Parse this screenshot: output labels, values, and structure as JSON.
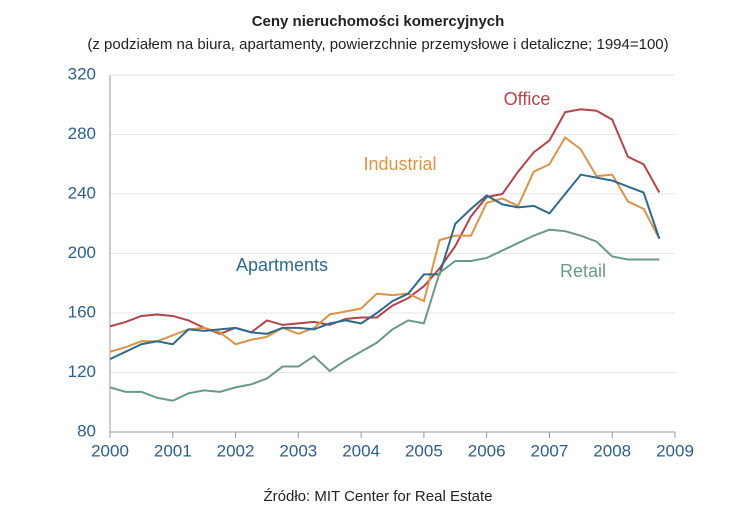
{
  "chart_data": {
    "type": "line",
    "title": "Ceny nieruchomości komercyjnych",
    "subtitle": "(z podziałem na biura, apartamenty, powierzchnie przemysłowe i detaliczne; 1994=100)",
    "source": "Źródło: MIT Center for Real Estate",
    "x": [
      2000,
      2000.25,
      2000.5,
      2000.75,
      2001,
      2001.25,
      2001.5,
      2001.75,
      2002,
      2002.25,
      2002.5,
      2002.75,
      2003,
      2003.25,
      2003.5,
      2003.75,
      2004,
      2004.25,
      2004.5,
      2004.75,
      2005,
      2005.25,
      2005.5,
      2005.75,
      2006,
      2006.25,
      2006.5,
      2006.75,
      2007,
      2007.25,
      2007.5,
      2007.75,
      2008,
      2008.25,
      2008.5,
      2008.75
    ],
    "series": [
      {
        "name": "Office",
        "color": "#b5434b",
        "values": [
          151,
          154,
          158,
          159,
          158,
          155,
          150,
          146,
          150,
          147,
          155,
          152,
          153,
          154,
          152,
          156,
          157,
          157,
          165,
          170,
          178,
          190,
          205,
          225,
          238,
          240,
          255,
          268,
          276,
          295,
          297,
          296,
          290,
          265,
          260,
          241
        ]
      },
      {
        "name": "Industrial",
        "color": "#d9944a",
        "values": [
          134,
          137,
          141,
          141,
          145,
          149,
          150,
          147,
          139,
          142,
          144,
          150,
          146,
          150,
          159,
          161,
          163,
          173,
          172,
          173,
          168,
          209,
          212,
          212,
          234,
          237,
          232,
          255,
          260,
          278,
          270,
          252,
          253,
          235,
          230,
          210
        ]
      },
      {
        "name": "Apartments",
        "color": "#2e6a8c",
        "values": [
          129,
          134,
          139,
          141,
          139,
          149,
          148,
          149,
          150,
          147,
          146,
          150,
          150,
          149,
          153,
          155,
          153,
          160,
          168,
          173,
          186,
          186,
          220,
          230,
          239,
          233,
          231,
          232,
          227,
          240,
          253,
          251,
          249,
          245,
          241,
          210
        ]
      },
      {
        "name": "Retail",
        "color": "#6a9a86",
        "values": [
          110,
          107,
          107,
          103,
          101,
          106,
          108,
          107,
          110,
          112,
          116,
          124,
          124,
          131,
          121,
          128,
          134,
          140,
          149,
          155,
          153,
          187,
          195,
          195,
          197,
          202,
          207,
          212,
          216,
          215,
          212,
          208,
          198,
          196,
          196,
          196
        ]
      }
    ],
    "xlim": [
      2000,
      2009
    ],
    "xticks": [
      2000,
      2001,
      2002,
      2003,
      2004,
      2005,
      2006,
      2007,
      2008,
      2009
    ],
    "ylim": [
      80,
      320
    ],
    "yticks": [
      80,
      120,
      160,
      200,
      240,
      280,
      320
    ],
    "grid": true
  }
}
